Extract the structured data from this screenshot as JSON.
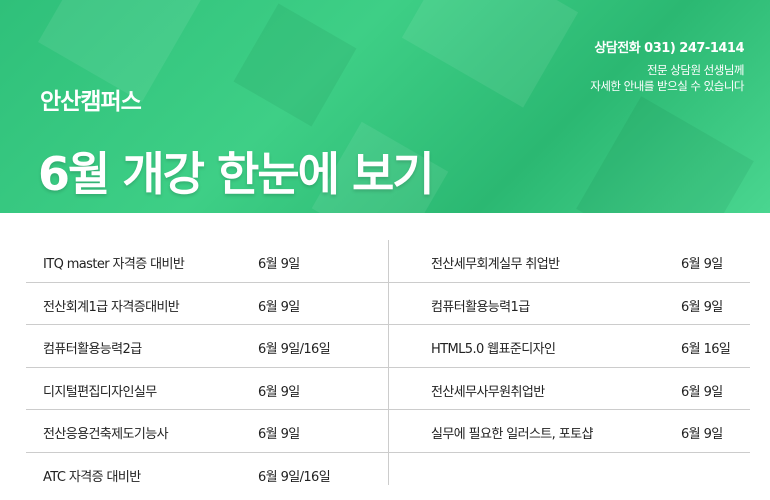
{
  "header": {
    "campus": "안산캠퍼스",
    "title": "6월  개강 한눈에 보기",
    "phone": "상담전화 031) 247-1414",
    "sub_line1": "전문 상담원 선생님께",
    "sub_line2": "자세한 안내를 받으실 수 있습니다",
    "accent": "#35c47e"
  },
  "left": [
    {
      "name": "ITQ master 자격증 대비반",
      "date": "6월 9일"
    },
    {
      "name": "전산회계1급 자격증대비반",
      "date": "6월 9일"
    },
    {
      "name": "컴퓨터활용능력2급",
      "date": "6월 9일/16일"
    },
    {
      "name": "디지털편집디자인실무",
      "date": "6월 9일"
    },
    {
      "name": "전산응용건축제도기능사",
      "date": "6월 9일"
    },
    {
      "name": "ATC 자격증 대비반",
      "date": "6월 9일/16일"
    }
  ],
  "right": [
    {
      "name": "전산세무회계실무 취업반",
      "date": "6월 9일"
    },
    {
      "name": "컴퓨터활용능력1급",
      "date": "6월 9일"
    },
    {
      "name": "HTML5.0 웹표준디자인",
      "date": "6월 16일"
    },
    {
      "name": "전산세무사무원취업반",
      "date": "6월 9일"
    },
    {
      "name": "실무에 필요한 일러스트, 포토샵",
      "date": "6월 9일"
    }
  ]
}
